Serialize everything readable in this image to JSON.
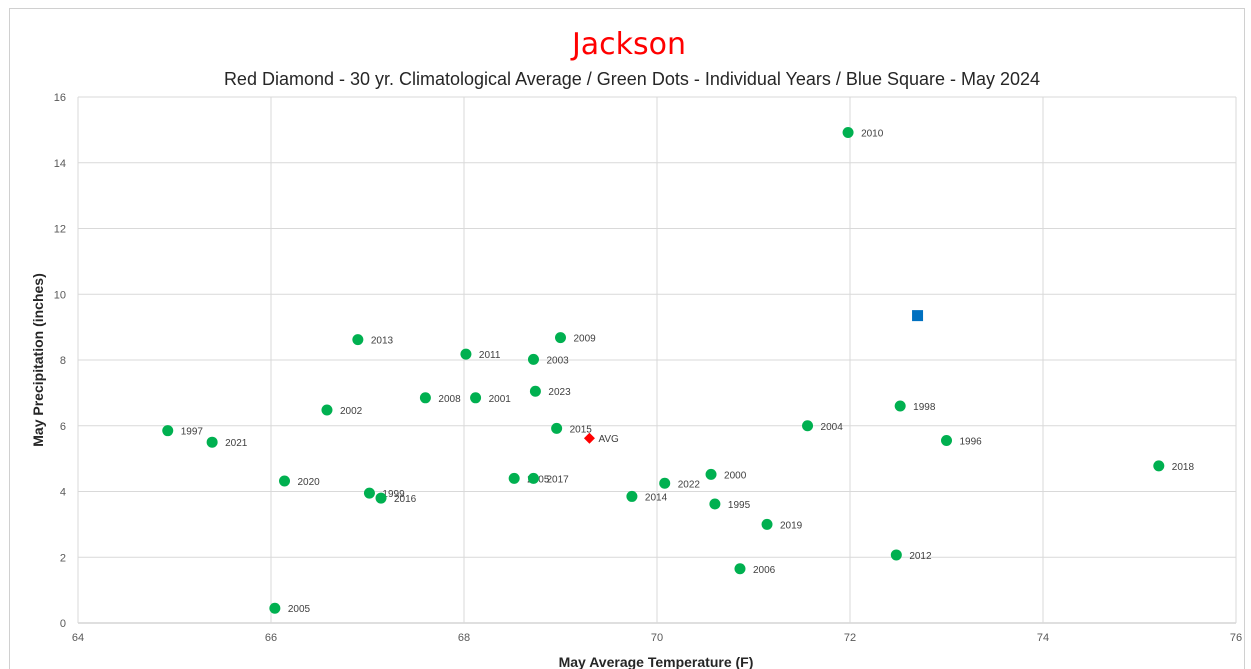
{
  "chart_data": {
    "type": "scatter",
    "title": "Jackson",
    "subtitle": "Red Diamond - 30 yr. Climatological Average / Green Dots - Individual Years / Blue Square - May 2024",
    "xlabel": "May Average Temperature (F)",
    "ylabel": "May Precipitation (inches)",
    "xlim": [
      64,
      76
    ],
    "ylim": [
      0,
      16
    ],
    "xticks": [
      "64",
      "66",
      "68",
      "70",
      "72",
      "74",
      "76"
    ],
    "yticks": [
      "0",
      "2",
      "4",
      "6",
      "8",
      "10",
      "12",
      "14",
      "16"
    ],
    "grid": true,
    "colors": {
      "title": "#ff0000",
      "years": "#00b050",
      "average": "#ff0000",
      "current": "#0070c0",
      "grid": "#d9d9d9"
    },
    "series": [
      {
        "marker": "circle",
        "color": "#00b050",
        "points": [
          {
            "label": "1997",
            "x": 64.93,
            "y": 5.85
          },
          {
            "label": "2021",
            "x": 65.39,
            "y": 5.5
          },
          {
            "label": "2005",
            "x": 66.04,
            "y": 0.45
          },
          {
            "label": "2020",
            "x": 66.14,
            "y": 4.32
          },
          {
            "label": "2002",
            "x": 66.58,
            "y": 6.48
          },
          {
            "label": "2013",
            "x": 66.9,
            "y": 8.62
          },
          {
            "label": "1999",
            "x": 67.02,
            "y": 3.95
          },
          {
            "label": "2016",
            "x": 67.14,
            "y": 3.8
          },
          {
            "label": "2008",
            "x": 67.6,
            "y": 6.85
          },
          {
            "label": "2011",
            "x": 68.02,
            "y": 8.18
          },
          {
            "label": "2001",
            "x": 68.12,
            "y": 6.85
          },
          {
            "label": "2005",
            "x": 68.52,
            "y": 4.4
          },
          {
            "label": "2003",
            "x": 68.72,
            "y": 8.02
          },
          {
            "label": "2017",
            "x": 68.72,
            "y": 4.4
          },
          {
            "label": "2023",
            "x": 68.74,
            "y": 7.05
          },
          {
            "label": "2015",
            "x": 68.96,
            "y": 5.92
          },
          {
            "label": "2009",
            "x": 69.0,
            "y": 8.68
          },
          {
            "label": "2014",
            "x": 69.74,
            "y": 3.85
          },
          {
            "label": "2022",
            "x": 70.08,
            "y": 4.25
          },
          {
            "label": "2000",
            "x": 70.56,
            "y": 4.52
          },
          {
            "label": "1995",
            "x": 70.6,
            "y": 3.62
          },
          {
            "label": "2006",
            "x": 70.86,
            "y": 1.65
          },
          {
            "label": "2019",
            "x": 71.14,
            "y": 3.0
          },
          {
            "label": "2004",
            "x": 71.56,
            "y": 6.0
          },
          {
            "label": "2010",
            "x": 71.98,
            "y": 14.92
          },
          {
            "label": "2012",
            "x": 72.48,
            "y": 2.07
          },
          {
            "label": "1998",
            "x": 72.52,
            "y": 6.6
          },
          {
            "label": "1996",
            "x": 73.0,
            "y": 5.55
          },
          {
            "label": "2018",
            "x": 75.2,
            "y": 4.78
          }
        ]
      },
      {
        "marker": "diamond",
        "color": "#ff0000",
        "points": [
          {
            "label": "AVG",
            "x": 69.3,
            "y": 5.62
          }
        ]
      },
      {
        "marker": "square",
        "color": "#0070c0",
        "points": [
          {
            "label": "",
            "x": 72.7,
            "y": 9.35
          }
        ]
      }
    ]
  }
}
